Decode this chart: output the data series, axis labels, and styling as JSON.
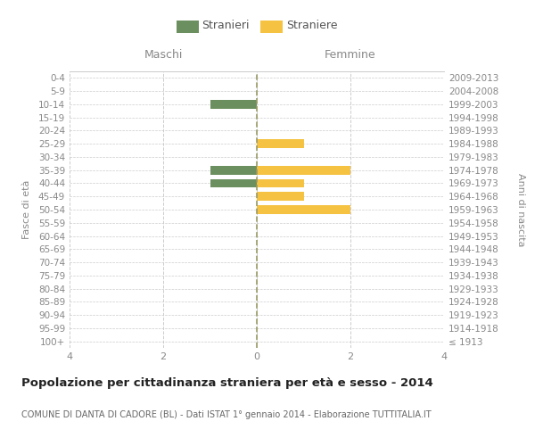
{
  "age_groups": [
    "100+",
    "95-99",
    "90-94",
    "85-89",
    "80-84",
    "75-79",
    "70-74",
    "65-69",
    "60-64",
    "55-59",
    "50-54",
    "45-49",
    "40-44",
    "35-39",
    "30-34",
    "25-29",
    "20-24",
    "15-19",
    "10-14",
    "5-9",
    "0-4"
  ],
  "birth_years": [
    "≤ 1913",
    "1914-1918",
    "1919-1923",
    "1924-1928",
    "1929-1933",
    "1934-1938",
    "1939-1943",
    "1944-1948",
    "1949-1953",
    "1954-1958",
    "1959-1963",
    "1964-1968",
    "1969-1973",
    "1974-1978",
    "1979-1983",
    "1984-1988",
    "1989-1993",
    "1994-1998",
    "1999-2003",
    "2004-2008",
    "2009-2013"
  ],
  "males": [
    0,
    0,
    0,
    0,
    0,
    0,
    0,
    0,
    0,
    0,
    0,
    0,
    -1,
    -1,
    0,
    0,
    0,
    0,
    -1,
    0,
    0
  ],
  "females": [
    0,
    0,
    0,
    0,
    0,
    0,
    0,
    0,
    0,
    0,
    2,
    1,
    1,
    2,
    0,
    1,
    0,
    0,
    0,
    0,
    0
  ],
  "male_color": "#6b8f5e",
  "female_color": "#f5c242",
  "male_label": "Stranieri",
  "female_label": "Straniere",
  "title": "Popolazione per cittadinanza straniera per età e sesso - 2014",
  "subtitle": "COMUNE DI DANTA DI CADORE (BL) - Dati ISTAT 1° gennaio 2014 - Elaborazione TUTTITALIA.IT",
  "xlabel_left": "Maschi",
  "xlabel_right": "Femmine",
  "ylabel_left": "Fasce di età",
  "ylabel_right": "Anni di nascita",
  "xlim": [
    -4,
    4
  ],
  "xticks": [
    -4,
    -2,
    0,
    2,
    4
  ],
  "xticklabels": [
    "4",
    "2",
    "0",
    "2",
    "4"
  ],
  "background_color": "#ffffff",
  "grid_color": "#cccccc",
  "center_line_color": "#999966"
}
